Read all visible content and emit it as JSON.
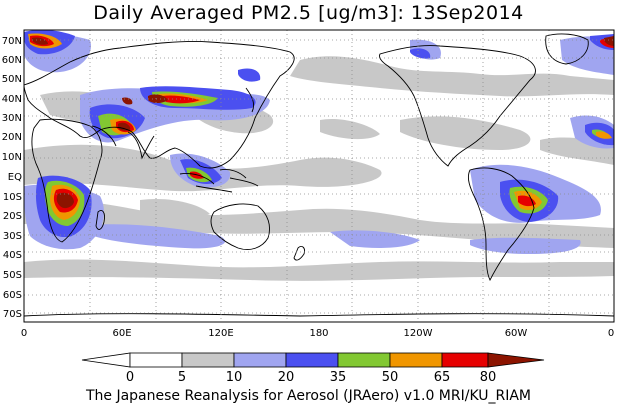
{
  "title": "Daily Averaged PM2.5 [ug/m3]: 13Sep2014",
  "footer": "The Japanese Reanalysis for Aerosol (JRAero) v1.0 MRI/KU_RIAM",
  "map": {
    "lat_labels": [
      "70N",
      "60N",
      "50N",
      "40N",
      "30N",
      "20N",
      "10N",
      "EQ",
      "10S",
      "20S",
      "30S",
      "40S",
      "50S",
      "60S",
      "70S"
    ],
    "lon_labels": [
      "0",
      "60E",
      "120E",
      "180",
      "120W",
      "60W",
      "0"
    ]
  },
  "colorbar": {
    "labels": [
      "0",
      "5",
      "10",
      "20",
      "35",
      "50",
      "65",
      "80"
    ],
    "colors": [
      "#ffffff",
      "#c8c8c8",
      "#a0a5f0",
      "#4b50f0",
      "#82c832",
      "#f09600",
      "#e60000",
      "#8c1400"
    ]
  }
}
